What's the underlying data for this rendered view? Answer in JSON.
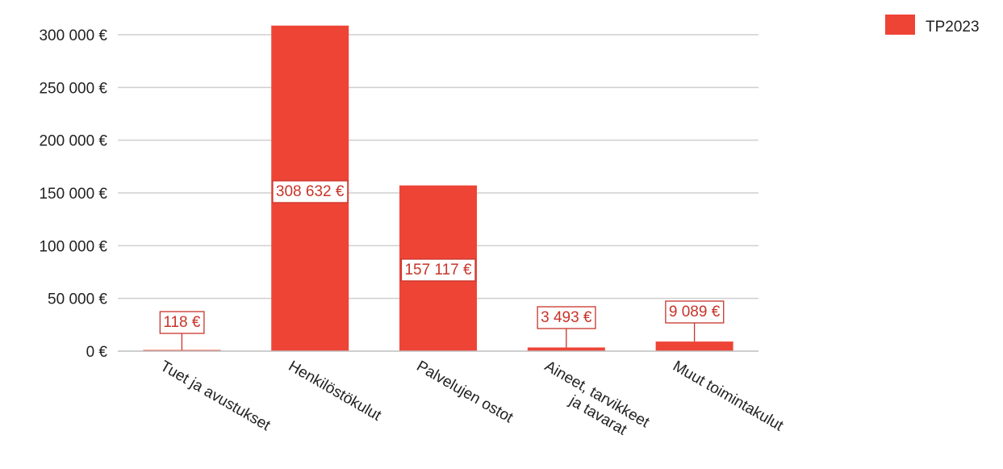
{
  "chart_data": {
    "type": "bar",
    "categories": [
      "Tuet ja avustukset",
      "Henkilöstökulut",
      "Palvelujen ostot",
      "Aineet, tarvikkeet ja tavarat",
      "Muut toimintakulut"
    ],
    "series": [
      {
        "name": "TP2023",
        "color": "#ee4436",
        "values": [
          118,
          308632,
          157117,
          3493,
          9089
        ],
        "labels": [
          "118 €",
          "308 632 €",
          "157 117 €",
          "3 493 €",
          "9 089 €"
        ]
      }
    ],
    "y_ticks": [
      {
        "value": 0,
        "label": "0 €"
      },
      {
        "value": 50000,
        "label": "50 000 €"
      },
      {
        "value": 100000,
        "label": "100 000 €"
      },
      {
        "value": 150000,
        "label": "150 000 €"
      },
      {
        "value": 200000,
        "label": "200 000 €"
      },
      {
        "value": 250000,
        "label": "250 000 €"
      },
      {
        "value": 300000,
        "label": "300 000 €"
      }
    ],
    "ylim": [
      0,
      300000
    ],
    "grid": true,
    "legend_position": "top-right",
    "title": "",
    "xlabel": "",
    "ylabel": ""
  }
}
